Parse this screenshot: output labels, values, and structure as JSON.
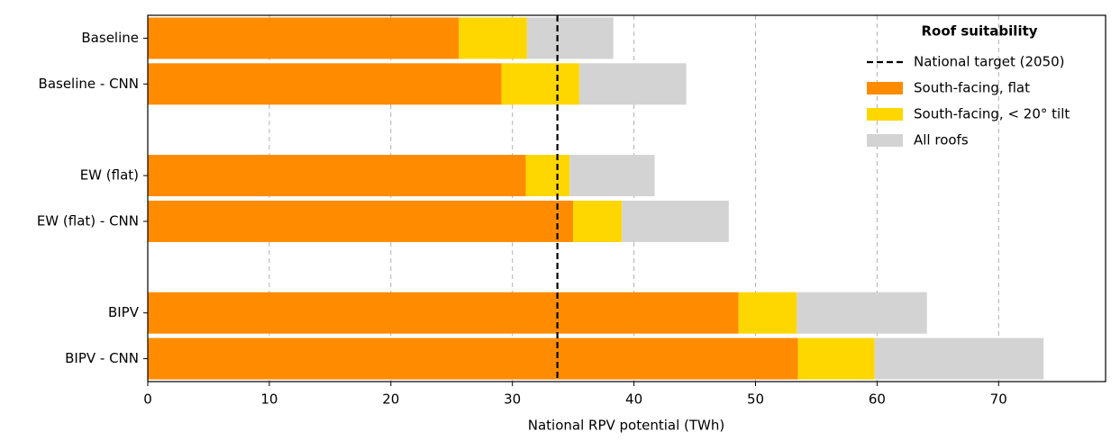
{
  "chart_data": {
    "type": "stacked_barh",
    "xlabel": "National RPV potential (TWh)",
    "categories": [
      "Baseline",
      "Baseline - CNN",
      null,
      "EW (flat)",
      "EW (flat) - CNN",
      null,
      "BIPV",
      "BIPV - CNN"
    ],
    "series": [
      {
        "name": "South-facing, flat",
        "color": "#ff8c00",
        "values": [
          25.6,
          29.1,
          null,
          31.1,
          35.0,
          null,
          48.6,
          53.5
        ]
      },
      {
        "name": "South-facing, < 20° tilt",
        "color": "#ffd700",
        "values": [
          5.6,
          6.4,
          null,
          3.6,
          4.0,
          null,
          4.8,
          6.3
        ]
      },
      {
        "name": "All roofs",
        "color": "#d3d3d3",
        "values": [
          7.1,
          8.8,
          null,
          7.0,
          8.8,
          null,
          10.7,
          13.9
        ]
      }
    ],
    "reference_line": {
      "name": "National target (2050)",
      "value": 33.7,
      "color": "#000000"
    },
    "legend_title": "Roof suitability",
    "legend": "upper right",
    "xlim": [
      0,
      78.8
    ],
    "xticks": [
      0,
      10,
      20,
      30,
      40,
      50,
      60,
      70
    ],
    "grid": true
  }
}
